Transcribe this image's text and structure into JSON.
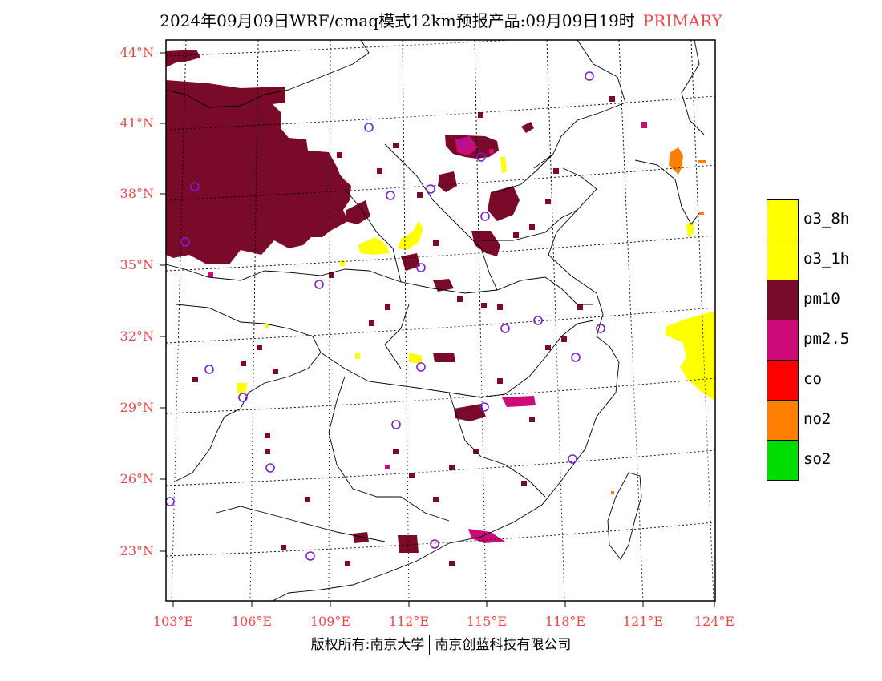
{
  "title": {
    "main": "2024年09月09日WRF/cmaq模式12km预报产品:09月09日19时",
    "tag": "PRIMARY"
  },
  "axes": {
    "lat_labels": [
      "44°N",
      "41°N",
      "38°N",
      "35°N",
      "32°N",
      "29°N",
      "26°N",
      "23°N"
    ],
    "lon_labels": [
      "103°E",
      "106°E",
      "109°E",
      "112°E",
      "115°E",
      "118°E",
      "121°E",
      "124°E"
    ]
  },
  "colors": {
    "o3_8h": "#ffff00",
    "o3_1h": "#ffff00",
    "pm10": "#7a0a2a",
    "pm25": "#cc0a78",
    "co": "#ff0000",
    "no2": "#ff7f00",
    "so2": "#00dd00",
    "station": "#7b1fd6",
    "label": "#e8484a"
  },
  "legend": [
    {
      "label": "o3_8h",
      "color": "#ffff00"
    },
    {
      "label": "o3_1h",
      "color": "#ffff00"
    },
    {
      "label": "pm10",
      "color": "#7a0a2a"
    },
    {
      "label": "pm2.5",
      "color": "#cc0a78"
    },
    {
      "label": "co",
      "color": "#ff0000"
    },
    {
      "label": "no2",
      "color": "#ff7f00"
    },
    {
      "label": "so2",
      "color": "#00dd00"
    }
  ],
  "footer": {
    "left": "版权所有:南京大学",
    "right": "南京创蓝科技有限公司"
  }
}
